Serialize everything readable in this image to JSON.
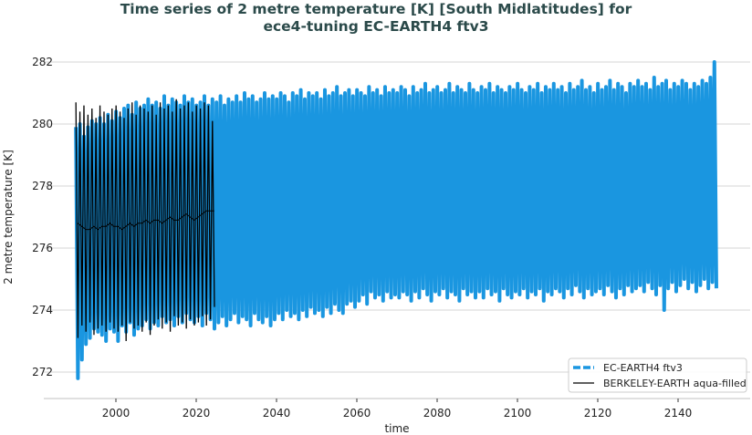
{
  "chart_data": {
    "type": "line",
    "title_line1": "Time series of 2 metre temperature [K] [South Midlatitudes] for",
    "title_line2": "ece4-tuning EC-EARTH4 ftv3",
    "xlabel": "time",
    "ylabel": "2 metre temperature [K]",
    "xlim": [
      1990,
      2150
    ],
    "ylim": [
      271.2,
      282.2
    ],
    "xticks": [
      2000,
      2020,
      2040,
      2060,
      2080,
      2100,
      2120,
      2140
    ],
    "yticks": [
      272,
      274,
      276,
      278,
      280,
      282
    ],
    "grid": "horizontal",
    "legend_placement": "bottom-right",
    "series": [
      {
        "name": "EC-EARTH4 ftv3",
        "color": "#1a96e0",
        "style": "dashed",
        "start_year": 1990,
        "annual_max": [
          279.9,
          280.0,
          279.6,
          279.9,
          280.1,
          280.0,
          280.2,
          280.0,
          280.3,
          280.1,
          280.4,
          280.2,
          280.5,
          280.6,
          280.3,
          280.7,
          280.5,
          280.6,
          280.8,
          280.6,
          280.7,
          280.5,
          280.9,
          280.6,
          280.8,
          280.7,
          280.6,
          280.9,
          280.7,
          280.8,
          280.6,
          280.7,
          280.9,
          280.6,
          280.8,
          280.7,
          280.9,
          280.6,
          280.8,
          280.7,
          280.9,
          280.7,
          281.0,
          280.8,
          280.9,
          280.7,
          280.8,
          281.0,
          280.8,
          280.9,
          280.8,
          281.0,
          280.9,
          280.7,
          281.0,
          280.9,
          281.1,
          280.8,
          281.0,
          280.9,
          281.0,
          280.8,
          281.1,
          280.9,
          281.0,
          281.2,
          280.9,
          281.0,
          281.1,
          280.9,
          281.1,
          281.0,
          280.9,
          281.2,
          281.0,
          281.1,
          280.9,
          281.2,
          281.0,
          281.1,
          281.0,
          281.2,
          281.1,
          280.9,
          281.2,
          281.0,
          281.1,
          281.3,
          281.0,
          281.1,
          281.2,
          281.0,
          281.1,
          281.3,
          281.0,
          281.2,
          281.1,
          281.0,
          281.3,
          281.1,
          281.0,
          281.2,
          281.1,
          281.3,
          281.0,
          281.2,
          281.1,
          281.0,
          281.2,
          281.1,
          281.3,
          281.1,
          281.0,
          281.2,
          281.1,
          281.3,
          281.0,
          281.2,
          281.1,
          281.3,
          281.1,
          281.2,
          281.0,
          281.3,
          281.1,
          281.2,
          281.4,
          281.1,
          281.2,
          281.0,
          281.3,
          281.1,
          281.2,
          281.4,
          281.1,
          281.3,
          281.2,
          281.0,
          281.3,
          281.2,
          281.4,
          281.2,
          281.3,
          281.1,
          281.5,
          281.2,
          281.3,
          281.4,
          281.1,
          281.3,
          281.2,
          281.4,
          281.3,
          281.1,
          281.3,
          281.2,
          281.4,
          281.3,
          281.5,
          282.0
        ],
        "annual_min": [
          271.8,
          272.4,
          272.9,
          273.1,
          273.4,
          273.3,
          273.2,
          273.0,
          273.4,
          273.3,
          273.0,
          273.5,
          273.3,
          273.6,
          273.2,
          273.4,
          273.5,
          273.7,
          273.4,
          273.6,
          273.5,
          273.8,
          273.6,
          273.7,
          273.5,
          273.8,
          273.6,
          273.9,
          273.7,
          273.6,
          273.8,
          273.5,
          273.9,
          273.7,
          273.4,
          273.6,
          273.8,
          273.5,
          273.7,
          273.9,
          273.6,
          273.8,
          273.7,
          273.5,
          273.9,
          273.7,
          273.6,
          273.8,
          273.5,
          273.7,
          273.9,
          273.7,
          274.0,
          273.8,
          273.9,
          273.7,
          274.0,
          273.8,
          274.1,
          273.9,
          274.0,
          273.8,
          274.1,
          273.9,
          274.2,
          274.0,
          273.9,
          274.2,
          274.3,
          274.1,
          274.3,
          274.5,
          274.2,
          274.6,
          274.4,
          274.5,
          274.3,
          274.6,
          274.4,
          274.5,
          274.4,
          274.6,
          274.5,
          274.3,
          274.6,
          274.4,
          274.7,
          274.5,
          274.3,
          274.6,
          274.5,
          274.7,
          274.4,
          274.6,
          274.5,
          274.3,
          274.7,
          274.5,
          274.6,
          274.4,
          274.6,
          274.4,
          274.7,
          274.5,
          274.6,
          274.3,
          274.7,
          274.5,
          274.4,
          274.6,
          274.5,
          274.7,
          274.4,
          274.6,
          274.5,
          274.7,
          274.3,
          274.6,
          274.5,
          274.7,
          274.6,
          274.4,
          274.7,
          274.5,
          274.8,
          274.6,
          274.4,
          274.7,
          274.5,
          274.6,
          274.7,
          274.5,
          274.8,
          274.6,
          274.4,
          274.7,
          274.5,
          274.8,
          274.6,
          274.7,
          274.8,
          274.6,
          274.9,
          274.7,
          274.5,
          274.8,
          274.0,
          274.7,
          274.9,
          274.6,
          274.8,
          275.0,
          274.7,
          274.9,
          274.6,
          274.8,
          275.0,
          274.7,
          274.9,
          274.7
        ]
      },
      {
        "name": "BERKELEY-EARTH aqua-filled",
        "color": "#000000",
        "style": "solid",
        "start_year": 1990,
        "annual_max": [
          280.7,
          280.4,
          280.6,
          280.3,
          280.5,
          280.2,
          280.6,
          280.4,
          280.3,
          280.5,
          280.6,
          280.4,
          280.2,
          280.5,
          280.7,
          280.3,
          280.6,
          280.5,
          280.4,
          280.6,
          280.3,
          280.7,
          280.5,
          280.6,
          280.4,
          280.8,
          280.5,
          280.6,
          280.7,
          280.4,
          280.6,
          280.5,
          280.7,
          280.6,
          280.1
        ],
        "annual_min": [
          273.1,
          273.5,
          273.3,
          273.6,
          273.2,
          273.4,
          273.5,
          273.3,
          273.6,
          273.4,
          273.3,
          273.5,
          273.0,
          273.6,
          273.4,
          273.5,
          273.3,
          273.6,
          273.2,
          273.5,
          273.7,
          273.4,
          273.6,
          273.3,
          273.8,
          273.5,
          273.6,
          273.4,
          273.7,
          273.5,
          273.6,
          273.8,
          273.5,
          273.7,
          274.1
        ],
        "annual_mean": [
          276.8,
          276.7,
          276.6,
          276.6,
          276.7,
          276.6,
          276.7,
          276.7,
          276.8,
          276.7,
          276.7,
          276.6,
          276.7,
          276.8,
          276.7,
          276.8,
          276.8,
          276.9,
          276.8,
          276.9,
          276.9,
          276.8,
          276.9,
          277.0,
          276.9,
          276.9,
          277.0,
          277.1,
          277.0,
          276.9,
          277.0,
          277.1,
          277.2,
          277.2,
          277.2
        ]
      }
    ]
  }
}
